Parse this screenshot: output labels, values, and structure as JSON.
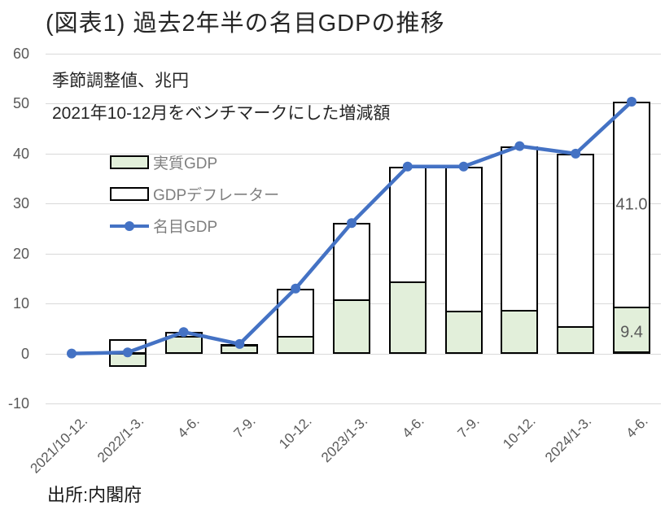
{
  "chart_data": {
    "type": "bar",
    "subtype": "stacked-bar-with-line",
    "title": "(図表1) 過去2年半の名目GDPの推移",
    "notes": [
      "季節調整値、兆円",
      "2021年10-12月をベンチマークにした増減額"
    ],
    "source": "出所:内閣府",
    "categories": [
      "2021/10-12.",
      "2022/1-3.",
      "4-6.",
      "7-9.",
      "10-12.",
      "2023/1-3.",
      "4-6.",
      "7-9.",
      "10-12.",
      "2024/1-3.",
      "4-6."
    ],
    "series": [
      {
        "name": "実質GDP",
        "type": "bar",
        "stack": true,
        "fill": "#e2efda",
        "border": "#000000",
        "values": [
          0,
          -2.6,
          3.5,
          1.8,
          3.5,
          10.9,
          14.5,
          8.5,
          8.8,
          5.5,
          9.4
        ]
      },
      {
        "name": "GDPデフレーター",
        "type": "bar",
        "stack": true,
        "fill": "#ffffff",
        "border": "#000000",
        "values": [
          0,
          2.8,
          0.8,
          0.1,
          9.5,
          15.2,
          22.9,
          28.9,
          32.7,
          34.5,
          41.0
        ]
      },
      {
        "name": "名目GDP",
        "type": "line",
        "color": "#4472c4",
        "values": [
          0,
          0.2,
          4.3,
          1.9,
          13.0,
          26.1,
          37.4,
          37.4,
          41.5,
          40.0,
          50.4
        ]
      }
    ],
    "bar_labels": [
      {
        "text": "41.0",
        "category_index": 10,
        "value": 29.8
      },
      {
        "text": "9.4",
        "category_index": 10,
        "value": 4.1
      }
    ],
    "ylim": [
      -10,
      60
    ],
    "ytick_step": 10,
    "grid": true,
    "legend_position": "upper-left-inside",
    "colors": {
      "line": "#4472c4",
      "bar_real_fill": "#e2efda",
      "bar_deflator_fill": "#ffffff",
      "bar_border": "#000000",
      "gridline": "#d9d9d9",
      "axis_text": "#595959",
      "legend_text": "#7f7f7f",
      "title_text": "#262626"
    }
  }
}
